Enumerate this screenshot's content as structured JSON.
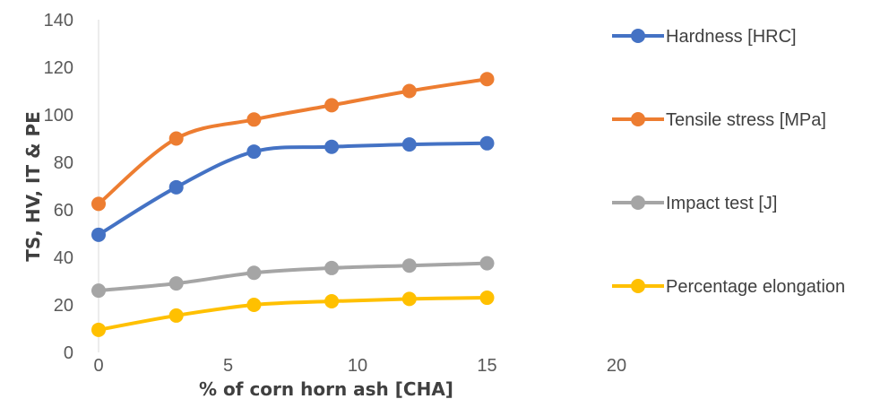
{
  "chart_data": {
    "type": "line",
    "title": "",
    "xlabel": "% of corn horn ash [CHA]",
    "ylabel": "TS, HV, IT & PE",
    "xlim": [
      0,
      20
    ],
    "ylim": [
      0,
      140
    ],
    "xticks": [
      0,
      5,
      10,
      15,
      20
    ],
    "yticks": [
      0,
      20,
      40,
      60,
      80,
      100,
      120,
      140
    ],
    "grid": false,
    "smooth": true,
    "legend_position": "right",
    "x": [
      0,
      3,
      6,
      9,
      12,
      15
    ],
    "series": [
      {
        "name": "Hardness [HRC]",
        "color": "#4472C4",
        "values": [
          49.5,
          69.5,
          84.5,
          86.5,
          87.5,
          88
        ]
      },
      {
        "name": "Tensile stress [MPa]",
        "color": "#ED7D31",
        "values": [
          62.5,
          90,
          98,
          104,
          110,
          115
        ]
      },
      {
        "name": "Impact test [J]",
        "color": "#A5A5A5",
        "values": [
          26,
          29,
          33.5,
          35.5,
          36.5,
          37.5
        ]
      },
      {
        "name": "Percentage elongation",
        "color": "#FFC000",
        "values": [
          9.5,
          15.5,
          20,
          21.5,
          22.5,
          23
        ]
      }
    ]
  }
}
